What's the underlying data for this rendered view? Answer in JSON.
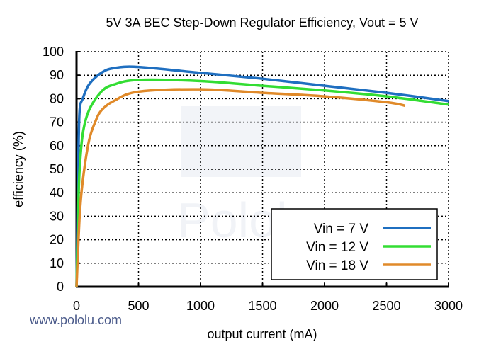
{
  "chart_data": {
    "type": "line",
    "title": "5V 3A BEC Step-Down Regulator Efficiency, Vout = 5 V",
    "xlabel": "output current (mA)",
    "ylabel": "efficiency (%)",
    "xlim": [
      0,
      3000
    ],
    "ylim": [
      0,
      100
    ],
    "xticks": [
      0,
      500,
      1000,
      1500,
      2000,
      2500,
      3000
    ],
    "yticks": [
      0,
      10,
      20,
      30,
      40,
      50,
      60,
      70,
      80,
      90,
      100
    ],
    "grid": true,
    "legend_position": "bottom-right",
    "series": [
      {
        "name": "Vin = 7 V",
        "color": "#1f6fc0",
        "x": [
          0,
          15,
          25,
          50,
          100,
          200,
          300,
          500,
          1000,
          1500,
          2000,
          2500,
          3000
        ],
        "y": [
          0,
          55,
          75,
          80,
          86,
          91,
          93,
          93.5,
          91,
          88.5,
          85.5,
          82.5,
          79
        ]
      },
      {
        "name": "Vin = 12 V",
        "color": "#33dd33",
        "x": [
          0,
          15,
          25,
          50,
          100,
          200,
          300,
          500,
          1000,
          1500,
          2000,
          2500,
          3000
        ],
        "y": [
          0,
          35,
          50,
          65,
          75,
          83,
          86,
          88,
          87.5,
          85.5,
          83.5,
          81,
          77.5
        ]
      },
      {
        "name": "Vin = 18 V",
        "color": "#e08a2a",
        "x": [
          0,
          25,
          50,
          100,
          150,
          200,
          300,
          500,
          1000,
          1500,
          2000,
          2500,
          2650
        ],
        "y": [
          0,
          30,
          45,
          62,
          70,
          75,
          79,
          83,
          84,
          82.5,
          81,
          78.5,
          77
        ]
      }
    ]
  },
  "watermark": "Pololu",
  "website": "www.pololu.com"
}
